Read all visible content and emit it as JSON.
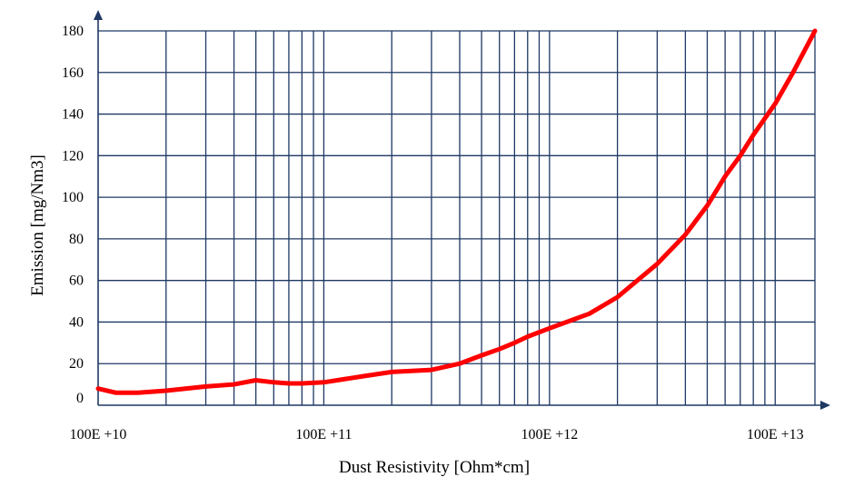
{
  "chart_data": {
    "type": "line",
    "title": "",
    "xlabel": "Dust Resistivity [Ohm*cm]",
    "ylabel": "Emission [mg/Nm3]",
    "x_scale": "log",
    "xlim": [
      10000000000.0,
      15000000000000.0
    ],
    "ylim": [
      0,
      180
    ],
    "grid": true,
    "x_tick_values": [
      10000000000.0,
      100000000000.0,
      1000000000000.0,
      10000000000000.0
    ],
    "x_tick_labels": [
      "100E +10",
      "100E +11",
      "100E +12",
      "100E +13"
    ],
    "y_ticks": [
      0,
      20,
      40,
      60,
      80,
      100,
      120,
      140,
      160,
      180
    ],
    "colors": {
      "line": "#ff0000",
      "grid": "#1f3864",
      "axis": "#1f3864"
    },
    "series": [
      {
        "x": [
          10000000000.0,
          12000000000.0,
          15000000000.0,
          20000000000.0,
          30000000000.0,
          40000000000.0,
          50000000000.0,
          60000000000.0,
          70000000000.0,
          80000000000.0,
          100000000000.0,
          150000000000.0,
          200000000000.0,
          300000000000.0,
          400000000000.0,
          500000000000.0,
          600000000000.0,
          700000000000.0,
          800000000000.0,
          1000000000000.0,
          1500000000000.0,
          2000000000000.0,
          3000000000000.0,
          4000000000000.0,
          5000000000000.0,
          6000000000000.0,
          7000000000000.0,
          8000000000000.0,
          10000000000000.0,
          12000000000000.0,
          15000000000000.0
        ],
        "y": [
          8,
          6,
          6,
          7,
          9,
          10,
          12,
          11,
          10.5,
          10.5,
          11,
          14,
          16,
          17,
          20,
          24,
          27,
          30,
          33,
          37,
          44,
          52,
          68,
          82,
          96,
          110,
          120,
          130,
          145,
          160,
          180
        ]
      }
    ]
  }
}
